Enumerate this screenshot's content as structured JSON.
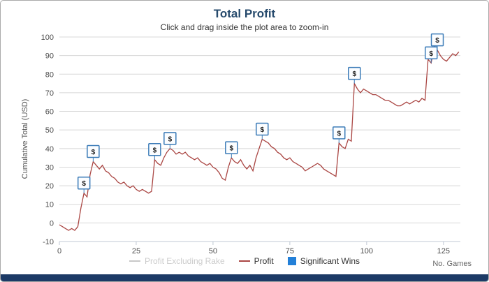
{
  "chart_data": {
    "type": "line",
    "title": "Total Profit",
    "subtitle": "Click and drag inside the plot area to zoom-in",
    "xlabel": "No. Games",
    "ylabel": "Cumulative Total (USD)",
    "xlim": [
      0,
      130.5
    ],
    "ylim": [
      -10,
      100
    ],
    "xticks": [
      0,
      25,
      50,
      75,
      100,
      125
    ],
    "yticks": [
      -10,
      0,
      10,
      20,
      30,
      40,
      50,
      60,
      70,
      80,
      90,
      100
    ],
    "grid": "horizontal",
    "colors": {
      "title": "#274b6d",
      "gridline": "#d8d8d8",
      "axis_line": "#c0c8d4",
      "flag_border": "#3c7cb8",
      "flag_fill": "#fbfdff",
      "footer_bar": "#1c3a66"
    },
    "series": [
      {
        "name": "Profit",
        "color": "#aa4643",
        "points": [
          [
            0,
            -1
          ],
          [
            1,
            -2
          ],
          [
            2,
            -3
          ],
          [
            3,
            -4
          ],
          [
            4,
            -3
          ],
          [
            5,
            -4
          ],
          [
            6,
            -2
          ],
          [
            7,
            8
          ],
          [
            8,
            16
          ],
          [
            9,
            14
          ],
          [
            10,
            26
          ],
          [
            11,
            33
          ],
          [
            12,
            31
          ],
          [
            13,
            29
          ],
          [
            14,
            31
          ],
          [
            15,
            28
          ],
          [
            16,
            27
          ],
          [
            17,
            25
          ],
          [
            18,
            24
          ],
          [
            19,
            22
          ],
          [
            20,
            21
          ],
          [
            21,
            22
          ],
          [
            22,
            20
          ],
          [
            23,
            19
          ],
          [
            24,
            20
          ],
          [
            25,
            18
          ],
          [
            26,
            17
          ],
          [
            27,
            18
          ],
          [
            28,
            17
          ],
          [
            29,
            16
          ],
          [
            30,
            17
          ],
          [
            31,
            34
          ],
          [
            32,
            32
          ],
          [
            33,
            31
          ],
          [
            34,
            35
          ],
          [
            35,
            38
          ],
          [
            36,
            40
          ],
          [
            37,
            39
          ],
          [
            38,
            37
          ],
          [
            39,
            38
          ],
          [
            40,
            37
          ],
          [
            41,
            38
          ],
          [
            42,
            36
          ],
          [
            43,
            35
          ],
          [
            44,
            34
          ],
          [
            45,
            35
          ],
          [
            46,
            33
          ],
          [
            47,
            32
          ],
          [
            48,
            31
          ],
          [
            49,
            32
          ],
          [
            50,
            30
          ],
          [
            51,
            29
          ],
          [
            52,
            27
          ],
          [
            53,
            24
          ],
          [
            54,
            23
          ],
          [
            55,
            30
          ],
          [
            56,
            35
          ],
          [
            57,
            33
          ],
          [
            58,
            32
          ],
          [
            59,
            34
          ],
          [
            60,
            31
          ],
          [
            61,
            29
          ],
          [
            62,
            31
          ],
          [
            63,
            28
          ],
          [
            64,
            35
          ],
          [
            65,
            40
          ],
          [
            66,
            45
          ],
          [
            67,
            44
          ],
          [
            68,
            43
          ],
          [
            69,
            41
          ],
          [
            70,
            40
          ],
          [
            71,
            38
          ],
          [
            72,
            37
          ],
          [
            73,
            35
          ],
          [
            74,
            34
          ],
          [
            75,
            35
          ],
          [
            76,
            33
          ],
          [
            77,
            32
          ],
          [
            78,
            31
          ],
          [
            79,
            30
          ],
          [
            80,
            28
          ],
          [
            81,
            29
          ],
          [
            82,
            30
          ],
          [
            83,
            31
          ],
          [
            84,
            32
          ],
          [
            85,
            31
          ],
          [
            86,
            29
          ],
          [
            87,
            28
          ],
          [
            88,
            27
          ],
          [
            89,
            26
          ],
          [
            90,
            25
          ],
          [
            91,
            43
          ],
          [
            92,
            41
          ],
          [
            93,
            40
          ],
          [
            94,
            45
          ],
          [
            95,
            44
          ],
          [
            96,
            75
          ],
          [
            97,
            72
          ],
          [
            98,
            70
          ],
          [
            99,
            72
          ],
          [
            100,
            71
          ],
          [
            101,
            70
          ],
          [
            102,
            69
          ],
          [
            103,
            69
          ],
          [
            104,
            68
          ],
          [
            105,
            67
          ],
          [
            106,
            66
          ],
          [
            107,
            66
          ],
          [
            108,
            65
          ],
          [
            109,
            64
          ],
          [
            110,
            63
          ],
          [
            111,
            63
          ],
          [
            112,
            64
          ],
          [
            113,
            65
          ],
          [
            114,
            64
          ],
          [
            115,
            65
          ],
          [
            116,
            66
          ],
          [
            117,
            65
          ],
          [
            118,
            67
          ],
          [
            119,
            66
          ],
          [
            120,
            88
          ],
          [
            121,
            86
          ],
          [
            122,
            95
          ],
          [
            123,
            93
          ],
          [
            124,
            90
          ],
          [
            125,
            88
          ],
          [
            126,
            87
          ],
          [
            127,
            89
          ],
          [
            128,
            91
          ],
          [
            129,
            90
          ],
          [
            130,
            92
          ]
        ]
      }
    ],
    "flags": [
      {
        "x": 8,
        "y": 16,
        "label": "$"
      },
      {
        "x": 11,
        "y": 33,
        "label": "$"
      },
      {
        "x": 31,
        "y": 34,
        "label": "$"
      },
      {
        "x": 36,
        "y": 40,
        "label": "$"
      },
      {
        "x": 56,
        "y": 35,
        "label": "$"
      },
      {
        "x": 66,
        "y": 45,
        "label": "$"
      },
      {
        "x": 91,
        "y": 43,
        "label": "$"
      },
      {
        "x": 96,
        "y": 75,
        "label": "$"
      },
      {
        "x": 121,
        "y": 86,
        "label": "$"
      },
      {
        "x": 123,
        "y": 93,
        "label": "$"
      }
    ],
    "legend": [
      {
        "label": "Profit Excluding Rake",
        "color": "#c8c8c8",
        "type": "line",
        "disabled": true
      },
      {
        "label": "Profit",
        "color": "#aa4643",
        "type": "line",
        "disabled": false
      },
      {
        "label": "Significant Wins",
        "color": "#2380d8",
        "type": "square",
        "disabled": false
      }
    ],
    "legend_position": "bottom-center"
  }
}
